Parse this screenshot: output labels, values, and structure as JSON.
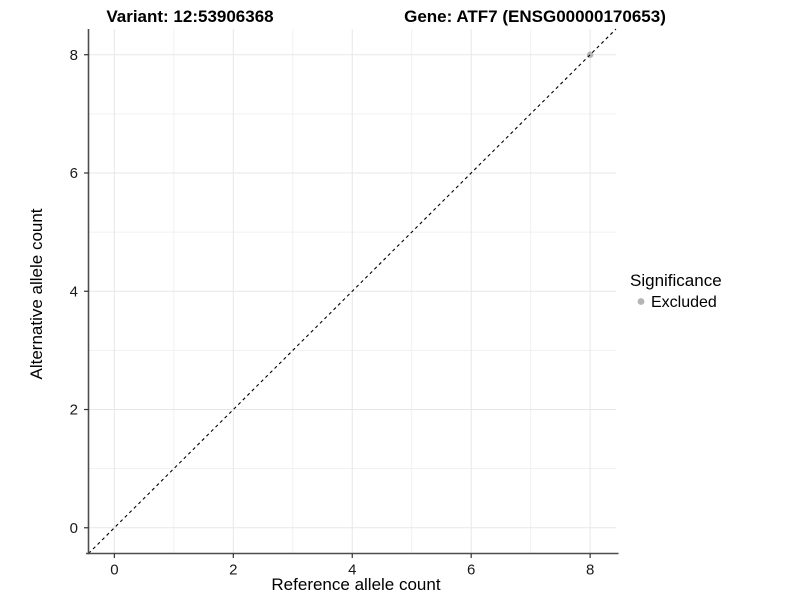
{
  "chart_data": {
    "type": "scatter",
    "title_left": "Variant: 12:53906368",
    "title_right": "Gene: ATF7 (ENSG00000170653)",
    "xlabel": "Reference allele count",
    "ylabel": "Alternative allele count",
    "xlim": [
      -0.435,
      8.435
    ],
    "ylim": [
      -0.435,
      8.435
    ],
    "x_ticks": [
      0,
      2,
      4,
      6,
      8
    ],
    "y_ticks": [
      0,
      2,
      4,
      6,
      8
    ],
    "x_minor_ticks": [
      1,
      3,
      5,
      7
    ],
    "y_minor_ticks": [
      1,
      3,
      5,
      7
    ],
    "grid": true,
    "identity_line": {
      "slope": 1,
      "intercept": 0,
      "style": "dashed",
      "color": "#000000"
    },
    "series": [
      {
        "name": "Excluded",
        "color": "#b4b4b4",
        "points": [
          {
            "x": 8,
            "y": 8
          }
        ]
      }
    ],
    "legend": {
      "title": "Significance",
      "position": "right",
      "items": [
        {
          "label": "Excluded",
          "color": "#b4b4b4"
        }
      ]
    },
    "colors": {
      "grid_major": "#e7e7e7",
      "grid_minor": "#f1f1f1",
      "axis_line": "#4d4d4d",
      "tick_mark": "#333333",
      "background": "#ffffff"
    }
  }
}
